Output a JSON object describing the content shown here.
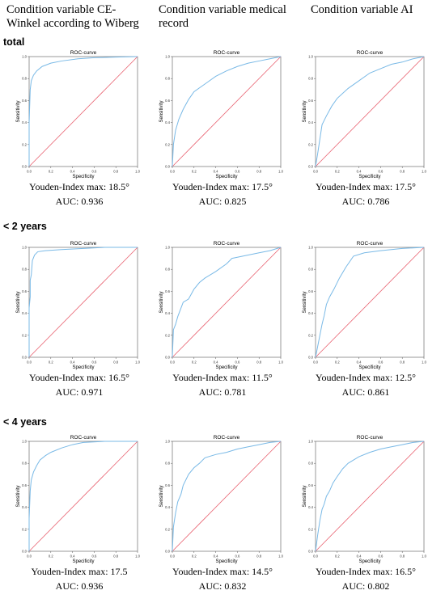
{
  "columns": [
    "Condition variable CE-Winkel according to Wiberg",
    "Condition variable medical record",
    "Condition variable AI"
  ],
  "rows": [
    "total",
    "< 2 years",
    "< 4 years"
  ],
  "chart_data": [
    {
      "type": "line",
      "title": "ROC-curve",
      "xlabel": "Specificity",
      "ylabel": "Sensitivity",
      "xlim": [
        0,
        1
      ],
      "ylim": [
        0,
        1
      ],
      "ticks": [
        "0.0",
        "0.2",
        "0.4",
        "0.6",
        "0.8",
        "1.0"
      ],
      "series": [
        {
          "x": [
            0,
            0,
            0.01,
            0.02,
            0.04,
            0.07,
            0.12,
            0.2,
            0.3,
            0.45,
            0.6,
            0.8,
            1
          ],
          "y": [
            0,
            0.4,
            0.7,
            0.78,
            0.83,
            0.87,
            0.91,
            0.94,
            0.96,
            0.98,
            0.99,
            0.995,
            1
          ]
        },
        {
          "x": [
            0,
            1
          ],
          "y": [
            0,
            1
          ]
        }
      ],
      "caption": {
        "youden": "Youden-Index max: 18.5°",
        "auc": "AUC: 0.936"
      }
    },
    {
      "type": "line",
      "title": "ROC-curve",
      "xlabel": "Specificity",
      "ylabel": "Sensitivity",
      "xlim": [
        0,
        1
      ],
      "ylim": [
        0,
        1
      ],
      "ticks": [
        "0.0",
        "0.2",
        "0.4",
        "0.6",
        "0.8",
        "1.0"
      ],
      "series": [
        {
          "x": [
            0,
            0.01,
            0.03,
            0.06,
            0.1,
            0.15,
            0.2,
            0.3,
            0.4,
            0.5,
            0.6,
            0.7,
            0.8,
            0.9,
            1
          ],
          "y": [
            0,
            0.2,
            0.33,
            0.43,
            0.52,
            0.61,
            0.68,
            0.75,
            0.82,
            0.87,
            0.91,
            0.94,
            0.96,
            0.98,
            1
          ]
        },
        {
          "x": [
            0,
            1
          ],
          "y": [
            0,
            1
          ]
        }
      ],
      "caption": {
        "youden": "Youden-Index max: 17.5°",
        "auc": "AUC: 0.825"
      }
    },
    {
      "type": "line",
      "title": "ROC-curve",
      "xlabel": "Specificity",
      "ylabel": "Sensitivity",
      "xlim": [
        0,
        1
      ],
      "ylim": [
        0,
        1
      ],
      "ticks": [
        "0.0",
        "0.2",
        "0.4",
        "0.6",
        "0.8",
        "1.0"
      ],
      "series": [
        {
          "x": [
            0,
            0.02,
            0.04,
            0.06,
            0.1,
            0.15,
            0.2,
            0.3,
            0.4,
            0.5,
            0.6,
            0.7,
            0.8,
            0.9,
            1
          ],
          "y": [
            0,
            0.12,
            0.25,
            0.38,
            0.46,
            0.55,
            0.62,
            0.71,
            0.78,
            0.85,
            0.89,
            0.93,
            0.95,
            0.98,
            1
          ]
        },
        {
          "x": [
            0,
            1
          ],
          "y": [
            0,
            1
          ]
        }
      ],
      "caption": {
        "youden": "Youden-Index max: 17.5°",
        "auc": "AUC: 0.786"
      }
    },
    {
      "type": "line",
      "title": "ROC-curve",
      "xlabel": "Specificity",
      "ylabel": "Sensitivity",
      "xlim": [
        0,
        1
      ],
      "ylim": [
        0,
        1
      ],
      "ticks": [
        "0.0",
        "0.2",
        "0.4",
        "0.6",
        "0.8",
        "1.0"
      ],
      "series": [
        {
          "x": [
            0,
            0,
            0.01,
            0.01,
            0.02,
            0.03,
            0.05,
            0.08,
            0.15,
            0.3,
            0.5,
            0.7,
            1
          ],
          "y": [
            0,
            0.45,
            0.55,
            0.7,
            0.75,
            0.88,
            0.93,
            0.96,
            0.97,
            0.98,
            0.99,
            1,
            1
          ]
        },
        {
          "x": [
            0,
            1
          ],
          "y": [
            0,
            1
          ]
        }
      ],
      "caption": {
        "youden": "Youden-Index max: 16.5°",
        "auc": "AUC: 0.971"
      }
    },
    {
      "type": "line",
      "title": "ROC-curve",
      "xlabel": "Specificity",
      "ylabel": "Sensitivity",
      "xlim": [
        0,
        1
      ],
      "ylim": [
        0,
        1
      ],
      "ticks": [
        "0.0",
        "0.2",
        "0.4",
        "0.6",
        "0.8",
        "1.0"
      ],
      "series": [
        {
          "x": [
            0,
            0.01,
            0.03,
            0.05,
            0.1,
            0.15,
            0.2,
            0.25,
            0.3,
            0.4,
            0.5,
            0.55,
            0.6,
            0.7,
            0.8,
            0.9,
            1
          ],
          "y": [
            0,
            0.25,
            0.3,
            0.37,
            0.5,
            0.53,
            0.62,
            0.68,
            0.72,
            0.78,
            0.85,
            0.9,
            0.91,
            0.93,
            0.95,
            0.97,
            1
          ]
        },
        {
          "x": [
            0,
            1
          ],
          "y": [
            0,
            1
          ]
        }
      ],
      "caption": {
        "youden": "Youden-Index max: 11.5°",
        "auc": "AUC: 0.781"
      }
    },
    {
      "type": "line",
      "title": "ROC-curve",
      "xlabel": "Specificity",
      "ylabel": "Sensitivity",
      "xlim": [
        0,
        1
      ],
      "ylim": [
        0,
        1
      ],
      "ticks": [
        "0.0",
        "0.2",
        "0.4",
        "0.6",
        "0.8",
        "1.0"
      ],
      "series": [
        {
          "x": [
            0,
            0.02,
            0.04,
            0.06,
            0.08,
            0.1,
            0.13,
            0.17,
            0.22,
            0.28,
            0.35,
            0.45,
            0.6,
            0.8,
            1
          ],
          "y": [
            0,
            0.1,
            0.2,
            0.3,
            0.38,
            0.48,
            0.55,
            0.62,
            0.72,
            0.82,
            0.92,
            0.95,
            0.97,
            0.99,
            1
          ]
        },
        {
          "x": [
            0,
            1
          ],
          "y": [
            0,
            1
          ]
        }
      ],
      "caption": {
        "youden": "Youden-Index max: 12.5°",
        "auc": "AUC: 0.861"
      }
    },
    {
      "type": "line",
      "title": "ROC-curve",
      "xlabel": "Specificity",
      "ylabel": "Sensitivity",
      "xlim": [
        0,
        1
      ],
      "ylim": [
        0,
        1
      ],
      "ticks": [
        "0.0",
        "0.2",
        "0.4",
        "0.6",
        "0.8",
        "1.0"
      ],
      "series": [
        {
          "x": [
            0,
            0,
            0.01,
            0.02,
            0.04,
            0.07,
            0.1,
            0.15,
            0.2,
            0.3,
            0.4,
            0.5,
            0.7,
            1
          ],
          "y": [
            0,
            0.3,
            0.55,
            0.65,
            0.72,
            0.78,
            0.83,
            0.87,
            0.9,
            0.94,
            0.97,
            0.99,
            1,
            1
          ]
        },
        {
          "x": [
            0,
            1
          ],
          "y": [
            0,
            1
          ]
        }
      ],
      "caption": {
        "youden": "Youden-Index max: 17.5",
        "auc": "AUC: 0.936"
      }
    },
    {
      "type": "line",
      "title": "ROC-curve",
      "xlabel": "Specificity",
      "ylabel": "Sensitivity",
      "xlim": [
        0,
        1
      ],
      "ylim": [
        0,
        1
      ],
      "ticks": [
        "0.0",
        "0.2",
        "0.4",
        "0.6",
        "0.8",
        "1.0"
      ],
      "series": [
        {
          "x": [
            0,
            0.01,
            0.03,
            0.05,
            0.08,
            0.1,
            0.15,
            0.2,
            0.25,
            0.3,
            0.4,
            0.5,
            0.6,
            0.7,
            0.8,
            0.9,
            1
          ],
          "y": [
            0,
            0.22,
            0.35,
            0.45,
            0.52,
            0.6,
            0.7,
            0.76,
            0.8,
            0.85,
            0.88,
            0.9,
            0.93,
            0.95,
            0.97,
            0.99,
            1
          ]
        },
        {
          "x": [
            0,
            1
          ],
          "y": [
            0,
            1
          ]
        }
      ],
      "caption": {
        "youden": "Youden-Index max: 14.5°",
        "auc": "AUC: 0.832"
      }
    },
    {
      "type": "line",
      "title": "ROC-curve",
      "xlabel": "Specificity",
      "ylabel": "Sensitivity",
      "xlim": [
        0,
        1
      ],
      "ylim": [
        0,
        1
      ],
      "ticks": [
        "0.0",
        "0.2",
        "0.4",
        "0.6",
        "0.8",
        "1.0"
      ],
      "series": [
        {
          "x": [
            0,
            0.02,
            0.04,
            0.06,
            0.08,
            0.1,
            0.13,
            0.16,
            0.2,
            0.25,
            0.3,
            0.4,
            0.5,
            0.6,
            0.7,
            0.8,
            0.9,
            1
          ],
          "y": [
            0,
            0.15,
            0.28,
            0.38,
            0.43,
            0.5,
            0.55,
            0.62,
            0.68,
            0.75,
            0.8,
            0.86,
            0.9,
            0.93,
            0.95,
            0.97,
            0.99,
            1
          ]
        },
        {
          "x": [
            0,
            1
          ],
          "y": [
            0,
            1
          ]
        }
      ],
      "caption": {
        "youden": "Youden-Index max: 16.5°",
        "auc": "AUC: 0.802"
      }
    }
  ]
}
